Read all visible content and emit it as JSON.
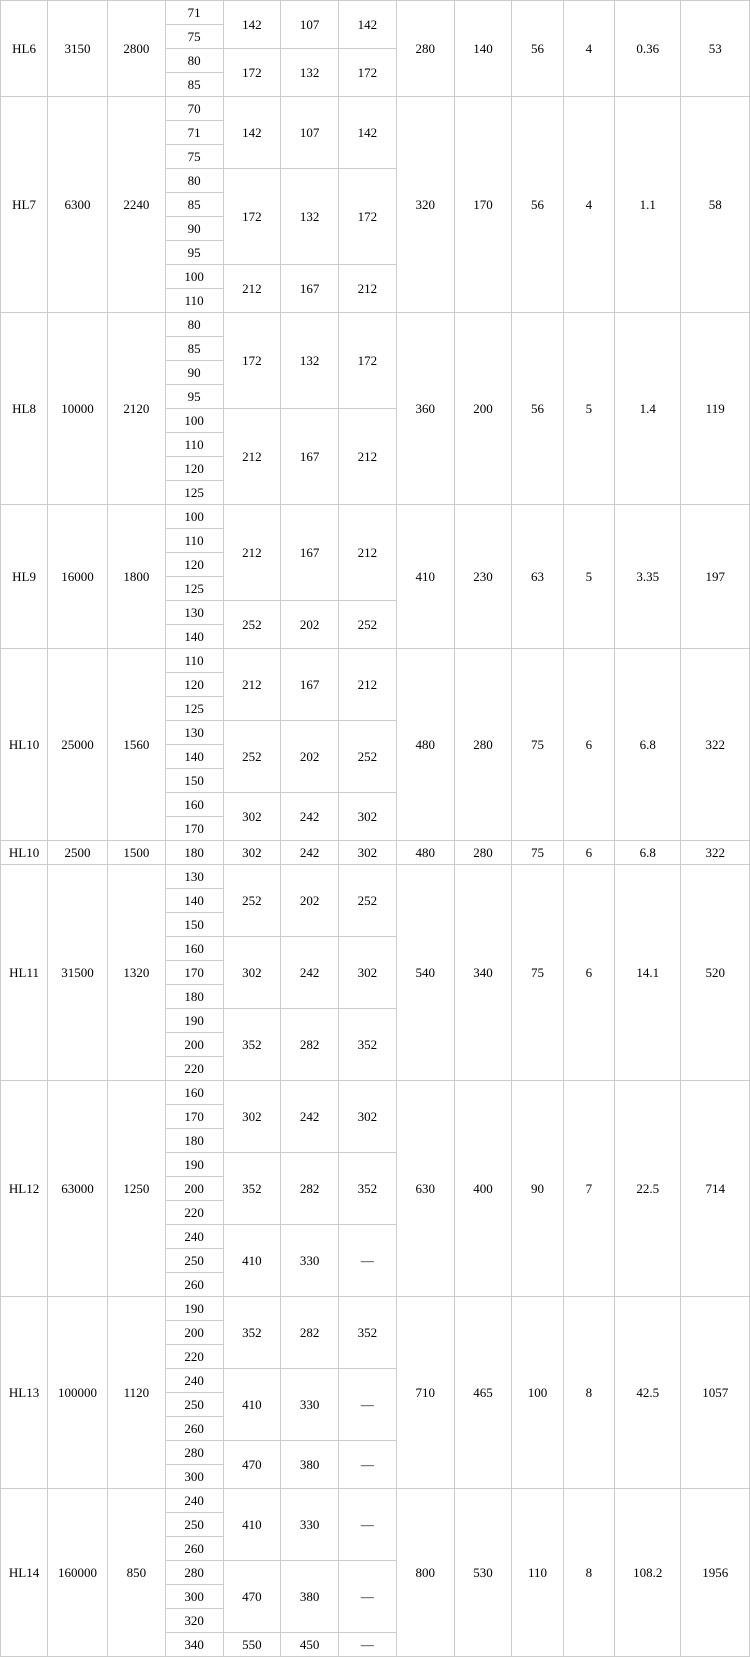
{
  "table": {
    "background_color": "#ffffff",
    "border_color": "#cccccc",
    "text_color": "#000000",
    "font_family": "Times New Roman",
    "font_size": 13,
    "rows": [
      {
        "model": "HL6",
        "v1": "3150",
        "v2": "2800",
        "d": [
          "71",
          "75",
          "80",
          "85"
        ],
        "subgroups": [
          {
            "span": 2,
            "a": "142",
            "b": "107",
            "c": "142"
          },
          {
            "span": 2,
            "a": "172",
            "b": "132",
            "c": "172"
          }
        ],
        "p1": "280",
        "p2": "140",
        "p3": "56",
        "p4": "4",
        "p5": "0.36",
        "p6": "53"
      },
      {
        "model": "HL7",
        "v1": "6300",
        "v2": "2240",
        "d": [
          "70",
          "71",
          "75",
          "80",
          "85",
          "90",
          "95",
          "100",
          "110"
        ],
        "subgroups": [
          {
            "span": 3,
            "a": "142",
            "b": "107",
            "c": "142"
          },
          {
            "span": 4,
            "a": "172",
            "b": "132",
            "c": "172"
          },
          {
            "span": 2,
            "a": "212",
            "b": "167",
            "c": "212"
          }
        ],
        "p1": "320",
        "p2": "170",
        "p3": "56",
        "p4": "4",
        "p5": "1.1",
        "p6": "58"
      },
      {
        "model": "HL8",
        "v1": "10000",
        "v2": "2120",
        "d": [
          "80",
          "85",
          "90",
          "95",
          "100",
          "110",
          "120",
          "125"
        ],
        "subgroups": [
          {
            "span": 4,
            "a": "172",
            "b": "132",
            "c": "172"
          },
          {
            "span": 4,
            "a": "212",
            "b": "167",
            "c": "212"
          }
        ],
        "p1": "360",
        "p2": "200",
        "p3": "56",
        "p4": "5",
        "p5": "1.4",
        "p6": "119"
      },
      {
        "model": "HL9",
        "v1": "16000",
        "v2": "1800",
        "d": [
          "100",
          "110",
          "120",
          "125",
          "130",
          "140"
        ],
        "subgroups": [
          {
            "span": 4,
            "a": "212",
            "b": "167",
            "c": "212"
          },
          {
            "span": 2,
            "a": "252",
            "b": "202",
            "c": "252"
          }
        ],
        "p1": "410",
        "p2": "230",
        "p3": "63",
        "p4": "5",
        "p5": "3.35",
        "p6": "197"
      },
      {
        "model": "HL10",
        "v1": "25000",
        "v2": "1560",
        "d": [
          "110",
          "120",
          "125",
          "130",
          "140",
          "150",
          "160",
          "170"
        ],
        "subgroups": [
          {
            "span": 3,
            "a": "212",
            "b": "167",
            "c": "212"
          },
          {
            "span": 3,
            "a": "252",
            "b": "202",
            "c": "252"
          },
          {
            "span": 2,
            "a": "302",
            "b": "242",
            "c": "302"
          }
        ],
        "p1": "480",
        "p2": "280",
        "p3": "75",
        "p4": "6",
        "p5": "6.8",
        "p6": "322"
      },
      {
        "model": "HL10",
        "v1": "2500",
        "v2": "1500",
        "d": [
          "180"
        ],
        "subgroups": [
          {
            "span": 1,
            "a": "302",
            "b": "242",
            "c": "302"
          }
        ],
        "p1": "480",
        "p2": "280",
        "p3": "75",
        "p4": "6",
        "p5": "6.8",
        "p6": "322"
      },
      {
        "model": "HL11",
        "v1": "31500",
        "v2": "1320",
        "d": [
          "130",
          "140",
          "150",
          "160",
          "170",
          "180",
          "190",
          "200",
          "220"
        ],
        "subgroups": [
          {
            "span": 3,
            "a": "252",
            "b": "202",
            "c": "252"
          },
          {
            "span": 3,
            "a": "302",
            "b": "242",
            "c": "302"
          },
          {
            "span": 3,
            "a": "352",
            "b": "282",
            "c": "352"
          }
        ],
        "p1": "540",
        "p2": "340",
        "p3": "75",
        "p4": "6",
        "p5": "14.1",
        "p6": "520"
      },
      {
        "model": "HL12",
        "v1": "63000",
        "v2": "1250",
        "d": [
          "160",
          "170",
          "180",
          "190",
          "200",
          "220",
          "240",
          "250",
          "260"
        ],
        "subgroups": [
          {
            "span": 3,
            "a": "302",
            "b": "242",
            "c": "302"
          },
          {
            "span": 3,
            "a": "352",
            "b": "282",
            "c": "352"
          },
          {
            "span": 3,
            "a": "410",
            "b": "330",
            "c": "—"
          }
        ],
        "p1": "630",
        "p2": "400",
        "p3": "90",
        "p4": "7",
        "p5": "22.5",
        "p6": "714"
      },
      {
        "model": "HL13",
        "v1": "100000",
        "v2": "1120",
        "d": [
          "190",
          "200",
          "220",
          "240",
          "250",
          "260",
          "280",
          "300"
        ],
        "subgroups": [
          {
            "span": 3,
            "a": "352",
            "b": "282",
            "c": "352"
          },
          {
            "span": 3,
            "a": "410",
            "b": "330",
            "c": "—"
          },
          {
            "span": 2,
            "a": "470",
            "b": "380",
            "c": "—"
          }
        ],
        "p1": "710",
        "p2": "465",
        "p3": "100",
        "p4": "8",
        "p5": "42.5",
        "p6": "1057"
      },
      {
        "model": "HL14",
        "v1": "160000",
        "v2": "850",
        "d": [
          "240",
          "250",
          "260",
          "280",
          "300",
          "320",
          "340"
        ],
        "subgroups": [
          {
            "span": 3,
            "a": "410",
            "b": "330",
            "c": "—"
          },
          {
            "span": 3,
            "a": "470",
            "b": "380",
            "c": "—"
          },
          {
            "span": 1,
            "a": "550",
            "b": "450",
            "c": "—"
          }
        ],
        "p1": "800",
        "p2": "530",
        "p3": "110",
        "p4": "8",
        "p5": "108.2",
        "p6": "1956"
      }
    ]
  }
}
